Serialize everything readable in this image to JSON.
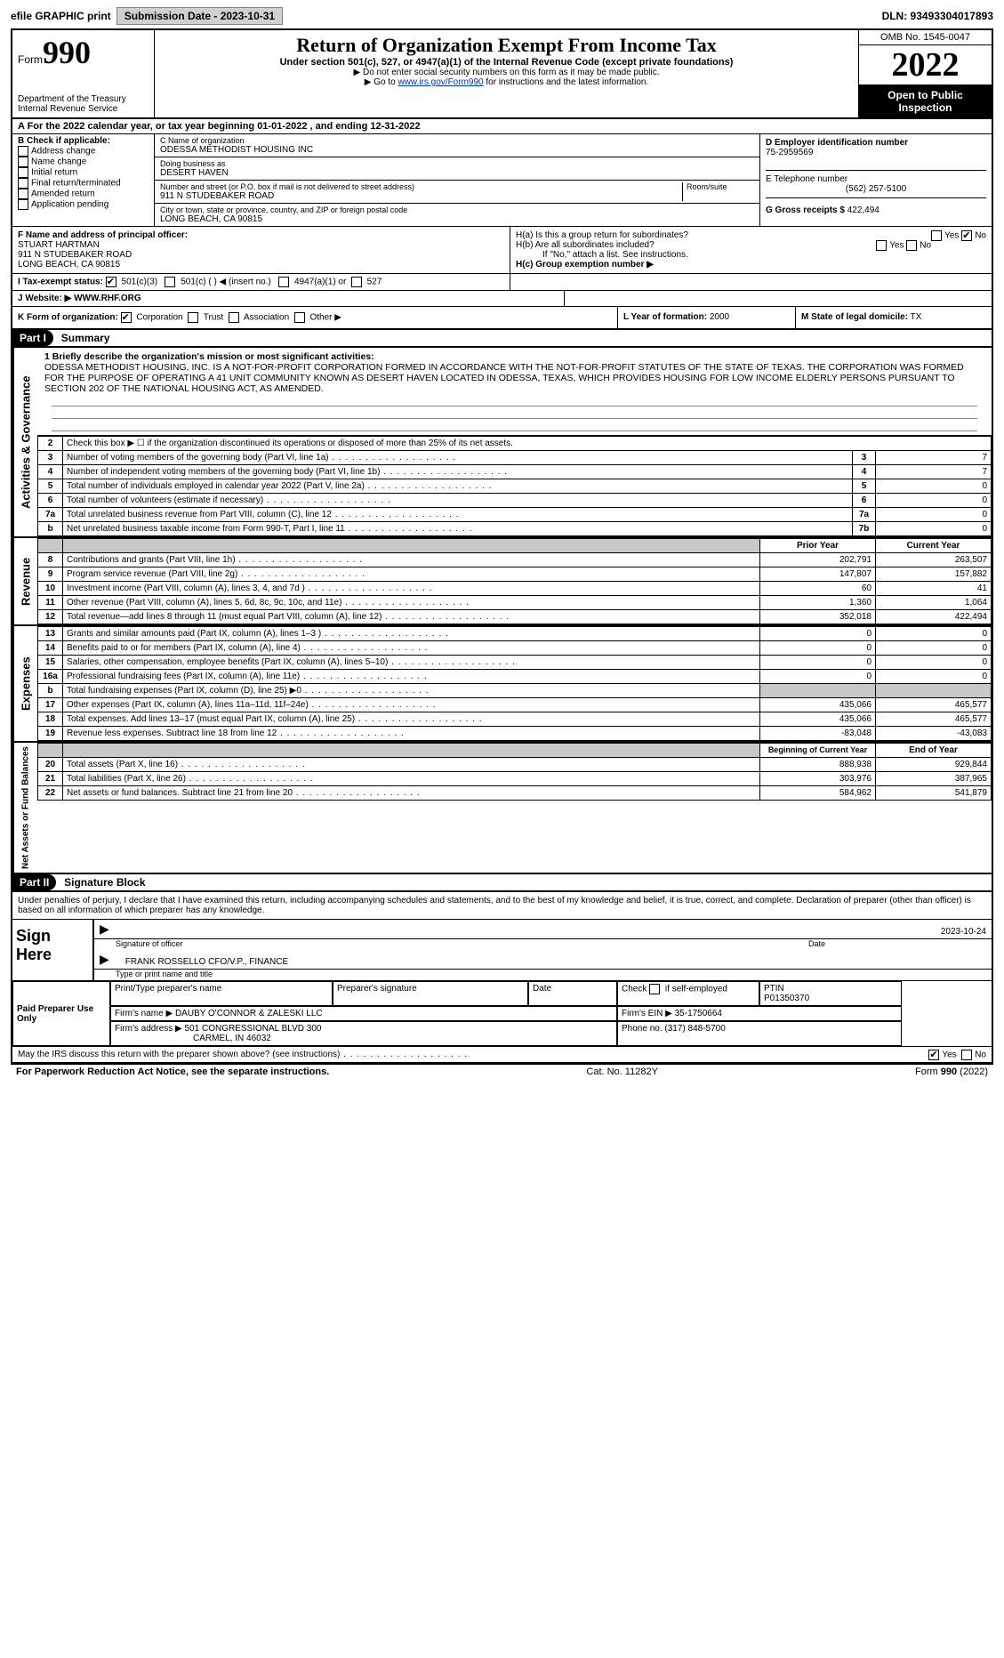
{
  "topbar": {
    "efile_label": "efile GRAPHIC print",
    "submission_label": "Submission Date - 2023-10-31",
    "dln_label": "DLN: 93493304017893"
  },
  "header": {
    "form_word": "Form",
    "form_num": "990",
    "dept": "Department of the Treasury",
    "irs": "Internal Revenue Service",
    "title": "Return of Organization Exempt From Income Tax",
    "subtitle": "Under section 501(c), 527, or 4947(a)(1) of the Internal Revenue Code (except private foundations)",
    "note1": "▶ Do not enter social security numbers on this form as it may be made public.",
    "note2_pre": "▶ Go to ",
    "note2_link": "www.irs.gov/Form990",
    "note2_post": " for instructions and the latest information.",
    "omb": "OMB No. 1545-0047",
    "year": "2022",
    "inspect1": "Open to Public",
    "inspect2": "Inspection"
  },
  "row_a": "A For the 2022 calendar year, or tax year beginning 01-01-2022   , and ending 12-31-2022",
  "box_b": {
    "heading": "B Check if applicable:",
    "items": [
      "Address change",
      "Name change",
      "Initial return",
      "Final return/terminated",
      "Amended return",
      "Application pending"
    ]
  },
  "box_c": {
    "label_name": "C Name of organization",
    "org_name": "ODESSA METHODIST HOUSING INC",
    "dba_label": "Doing business as",
    "dba": "DESERT HAVEN",
    "addr_label": "Number and street (or P.O. box if mail is not delivered to street address)",
    "addr": "911 N STUDEBAKER ROAD",
    "room_label": "Room/suite",
    "city_label": "City or town, state or province, country, and ZIP or foreign postal code",
    "city": "LONG BEACH, CA  90815"
  },
  "box_d": {
    "label": "D Employer identification number",
    "val": "75-2959569"
  },
  "box_e": {
    "label": "E Telephone number",
    "val": "(562) 257-5100"
  },
  "box_g": {
    "label": "G Gross receipts $",
    "val": "422,494"
  },
  "box_f": {
    "label": "F  Name and address of principal officer:",
    "name": "STUART HARTMAN",
    "addr1": "911 N STUDEBAKER ROAD",
    "addr2": "LONG BEACH, CA  90815"
  },
  "box_h": {
    "ha": "H(a)  Is this a group return for subordinates?",
    "hb": "H(b)  Are all subordinates included?",
    "hb_note": "If \"No,\" attach a list. See instructions.",
    "hc": "H(c)  Group exemption number ▶",
    "yes": "Yes",
    "no": "No"
  },
  "row_i": {
    "label": "I   Tax-exempt status:",
    "o1": "501(c)(3)",
    "o2": "501(c) (   ) ◀ (insert no.)",
    "o3": "4947(a)(1) or",
    "o4": "527"
  },
  "row_j": {
    "label": "J   Website: ▶",
    "val": "WWW.RHF.ORG"
  },
  "row_k": {
    "label": "K Form of organization:",
    "corp": "Corporation",
    "trust": "Trust",
    "assoc": "Association",
    "other": "Other ▶"
  },
  "row_l": {
    "label": "L Year of formation:",
    "val": "2000"
  },
  "row_m": {
    "label": "M State of legal domicile:",
    "val": "TX"
  },
  "part1": {
    "hdr": "Part I",
    "title": "Summary"
  },
  "mission_label": "1  Briefly describe the organization's mission or most significant activities:",
  "mission": "ODESSA METHODIST HOUSING, INC. IS A NOT-FOR-PROFIT CORPORATION FORMED IN ACCORDANCE WITH THE NOT-FOR-PROFIT STATUTES OF THE STATE OF TEXAS. THE CORPORATION WAS FORMED FOR THE PURPOSE OF OPERATING A 41 UNIT COMMUNITY KNOWN AS DESERT HAVEN LOCATED IN ODESSA, TEXAS, WHICH PROVIDES HOUSING FOR LOW INCOME ELDERLY PERSONS PURSUANT TO SECTION 202 OF THE NATIONAL HOUSING ACT, AS AMENDED.",
  "gov_lines": {
    "l2": "Check this box ▶ ☐  if the organization discontinued its operations or disposed of more than 25% of its net assets.",
    "l3": "Number of voting members of the governing body (Part VI, line 1a)",
    "l4": "Number of independent voting members of the governing body (Part VI, line 1b)",
    "l5": "Total number of individuals employed in calendar year 2022 (Part V, line 2a)",
    "l6": "Total number of volunteers (estimate if necessary)",
    "l7a": "Total unrelated business revenue from Part VIII, column (C), line 12",
    "l7b": "Net unrelated business taxable income from Form 990-T, Part I, line 11"
  },
  "gov_vals": {
    "l3": "7",
    "l4": "7",
    "l5": "0",
    "l6": "0",
    "l7a": "0",
    "l7b": "0"
  },
  "col_hdrs": {
    "prior": "Prior Year",
    "current": "Current Year",
    "boy": "Beginning of Current Year",
    "eoy": "End of Year"
  },
  "revenue": [
    {
      "n": "8",
      "d": "Contributions and grants (Part VIII, line 1h)",
      "p": "202,791",
      "c": "263,507"
    },
    {
      "n": "9",
      "d": "Program service revenue (Part VIII, line 2g)",
      "p": "147,807",
      "c": "157,882"
    },
    {
      "n": "10",
      "d": "Investment income (Part VIII, column (A), lines 3, 4, and 7d )",
      "p": "60",
      "c": "41"
    },
    {
      "n": "11",
      "d": "Other revenue (Part VIII, column (A), lines 5, 6d, 8c, 9c, 10c, and 11e)",
      "p": "1,360",
      "c": "1,064"
    },
    {
      "n": "12",
      "d": "Total revenue—add lines 8 through 11 (must equal Part VIII, column (A), line 12)",
      "p": "352,018",
      "c": "422,494"
    }
  ],
  "expenses": [
    {
      "n": "13",
      "d": "Grants and similar amounts paid (Part IX, column (A), lines 1–3 )",
      "p": "0",
      "c": "0"
    },
    {
      "n": "14",
      "d": "Benefits paid to or for members (Part IX, column (A), line 4)",
      "p": "0",
      "c": "0"
    },
    {
      "n": "15",
      "d": "Salaries, other compensation, employee benefits (Part IX, column (A), lines 5–10)",
      "p": "0",
      "c": "0"
    },
    {
      "n": "16a",
      "d": "Professional fundraising fees (Part IX, column (A), line 11e)",
      "p": "0",
      "c": "0"
    },
    {
      "n": "b",
      "d": "Total fundraising expenses (Part IX, column (D), line 25) ▶0",
      "p": "grey",
      "c": "grey"
    },
    {
      "n": "17",
      "d": "Other expenses (Part IX, column (A), lines 11a–11d, 11f–24e)",
      "p": "435,066",
      "c": "465,577"
    },
    {
      "n": "18",
      "d": "Total expenses. Add lines 13–17 (must equal Part IX, column (A), line 25)",
      "p": "435,066",
      "c": "465,577"
    },
    {
      "n": "19",
      "d": "Revenue less expenses. Subtract line 18 from line 12",
      "p": "-83,048",
      "c": "-43,083"
    }
  ],
  "netassets": [
    {
      "n": "20",
      "d": "Total assets (Part X, line 16)",
      "p": "888,938",
      "c": "929,844"
    },
    {
      "n": "21",
      "d": "Total liabilities (Part X, line 26)",
      "p": "303,976",
      "c": "387,965"
    },
    {
      "n": "22",
      "d": "Net assets or fund balances. Subtract line 21 from line 20",
      "p": "584,962",
      "c": "541,879"
    }
  ],
  "vlabels": {
    "gov": "Activities & Governance",
    "rev": "Revenue",
    "exp": "Expenses",
    "na": "Net Assets or\nFund Balances"
  },
  "part2": {
    "hdr": "Part II",
    "title": "Signature Block"
  },
  "perjury": "Under penalties of perjury, I declare that I have examined this return, including accompanying schedules and statements, and to the best of my knowledge and belief, it is true, correct, and complete. Declaration of preparer (other than officer) is based on all information of which preparer has any knowledge.",
  "sign": {
    "here": "Sign Here",
    "sig_officer": "Signature of officer",
    "date": "Date",
    "date_val": "2023-10-24",
    "name_title": "FRANK ROSSELLO  CFO/V.P., FINANCE",
    "type_name": "Type or print name and title"
  },
  "paid": {
    "label": "Paid Preparer Use Only",
    "h1": "Print/Type preparer's name",
    "h2": "Preparer's signature",
    "h3": "Date",
    "h4a": "Check",
    "h4b": "if self-employed",
    "h5": "PTIN",
    "ptin": "P01350370",
    "firm_name_l": "Firm's name    ▶",
    "firm_name": "DAUBY O'CONNOR & ZALESKI LLC",
    "firm_ein_l": "Firm's EIN ▶",
    "firm_ein": "35-1750664",
    "firm_addr_l": "Firm's address ▶",
    "firm_addr1": "501 CONGRESSIONAL BLVD 300",
    "firm_addr2": "CARMEL, IN  46032",
    "phone_l": "Phone no.",
    "phone": "(317) 848-5700"
  },
  "discuss": "May the IRS discuss this return with the preparer shown above? (see instructions)",
  "footer": {
    "pra": "For Paperwork Reduction Act Notice, see the separate instructions.",
    "cat": "Cat. No. 11282Y",
    "form": "Form 990 (2022)"
  }
}
